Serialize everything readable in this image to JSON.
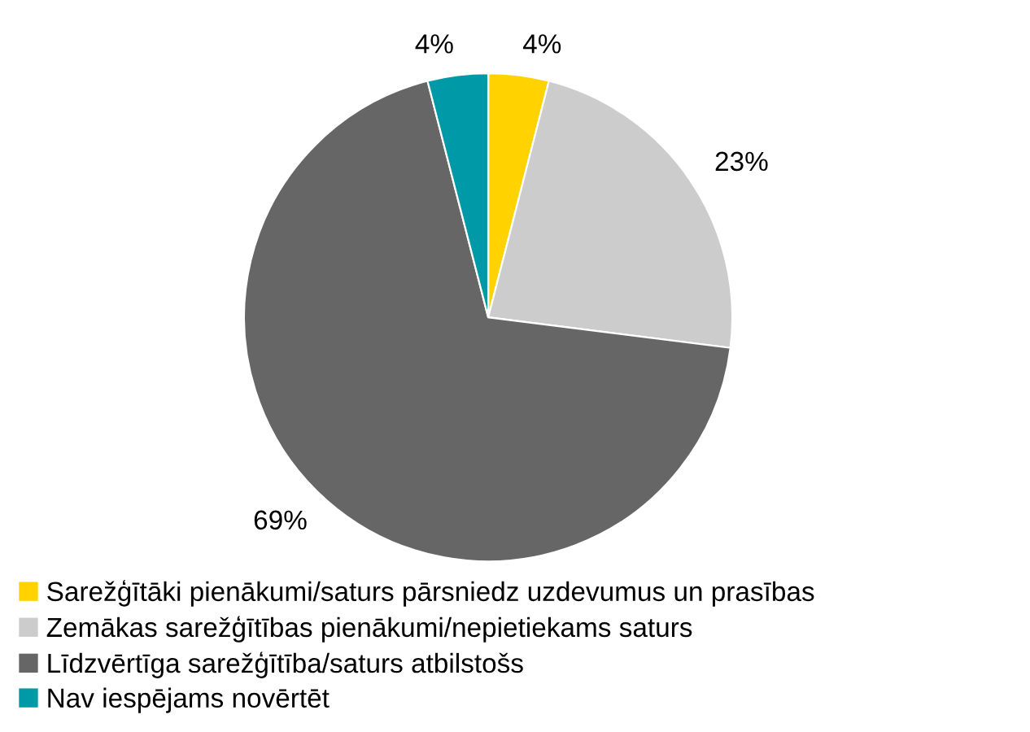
{
  "chart_data": {
    "type": "pie",
    "categories": [
      "Sarežģītāki pienākumi/saturs pārsniedz uzdevumus un prasības",
      "Zemākas sarežģītības pienākumi/nepietiekams saturs",
      "Līdzvērtīga sarežģītība/saturs atbilstošs",
      "Nav iespējams novērtēt"
    ],
    "values": [
      4,
      23,
      69,
      4
    ],
    "colors": [
      "#ffd200",
      "#cccccc",
      "#666666",
      "#0099a8"
    ],
    "value_labels": [
      "4%",
      "23%",
      "69%",
      "4%"
    ],
    "legend": "bottom left"
  }
}
